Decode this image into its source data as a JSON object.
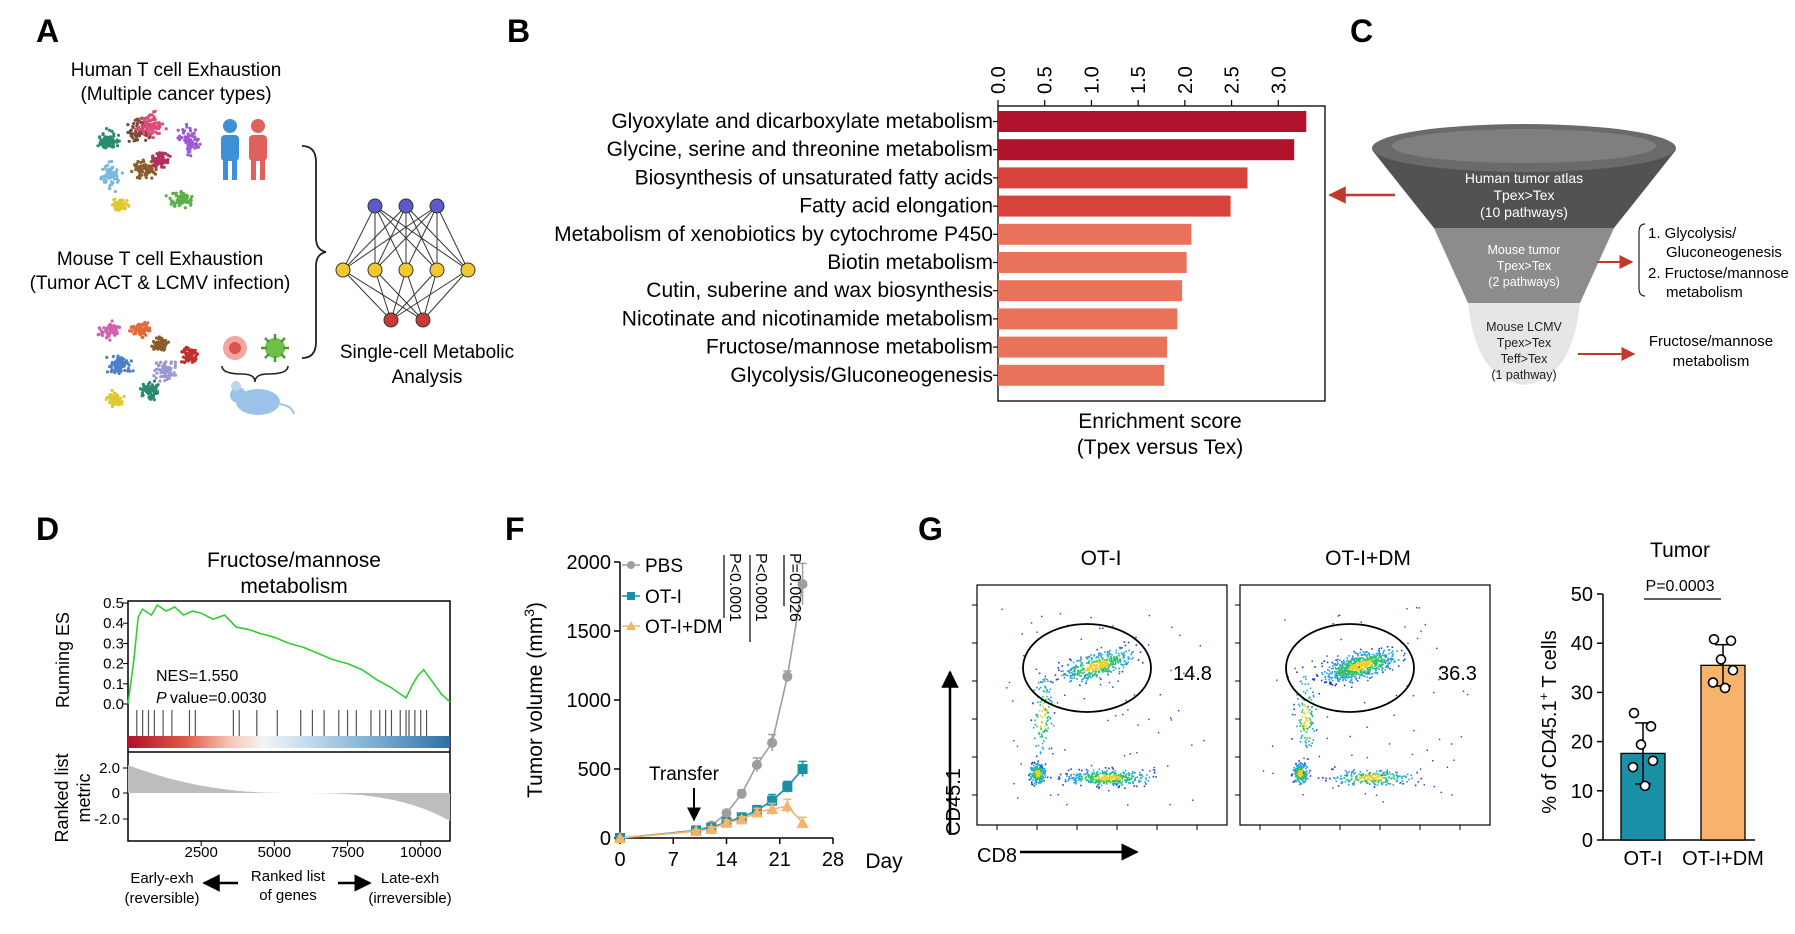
{
  "panels": {
    "A": {
      "letter": "A",
      "human_title": "Human T cell Exhaustion",
      "human_subtitle": "(Multiple cancer types)",
      "mouse_title": "Mouse T cell Exhaustion",
      "mouse_subtitle": "(Tumor ACT & LCMV infection)",
      "analysis_label_1": "Single-cell Metabolic",
      "analysis_label_2": "Analysis"
    },
    "B": {
      "letter": "B"
    },
    "C": {
      "letter": "C",
      "funnel_top_1": "Human tumor atlas",
      "funnel_top_2": "Tpex>Tex",
      "funnel_top_3": "(10 pathways)",
      "funnel_mid_1": "Mouse tumor",
      "funnel_mid_2": "Tpex>Tex",
      "funnel_mid_3": "(2 pathways)",
      "funnel_low_1": "Mouse LCMV",
      "funnel_low_2": "Tpex>Tex",
      "funnel_low_3": "Teff>Tex",
      "funnel_low_4": "(1 pathway)",
      "list_item_1a": "1.  Glycolysis/",
      "list_item_1b": "Gluconeogenesis",
      "list_item_2a": "2.  Fructose/mannose",
      "list_item_2b": "metabolism",
      "result_1": "Fructose/mannose",
      "result_2": "metabolism"
    },
    "D": {
      "letter": "D"
    },
    "F": {
      "letter": "F"
    },
    "G": {
      "letter": "G"
    }
  },
  "colors": {
    "bar_dark": "#b0112b",
    "bar_mid": "#d6433b",
    "bar_light": "#e9735a",
    "gsea_line": "#33cc33",
    "ot1": "#1a8fa6",
    "ot1dm": "#f7b36b",
    "pbs": "#9e9e9e",
    "arrow_red": "#c0392b"
  },
  "chart_data": [
    {
      "id": "B",
      "type": "bar",
      "orientation": "horizontal",
      "categories": [
        "Glyoxylate and dicarboxylate metabolism",
        "Glycine, serine and threonine metabolism",
        "Biosynthesis of unsaturated fatty acids",
        "Fatty acid elongation",
        "Metabolism of xenobiotics by cytochrome P450",
        "Biotin metabolism",
        "Cutin, suberine and wax biosynthesis",
        "Nicotinate and nicotinamide metabolism",
        "Fructose/mannose metabolism",
        "Glycolysis/Gluconeogenesis"
      ],
      "values": [
        3.3,
        3.17,
        2.67,
        2.49,
        2.07,
        2.02,
        1.97,
        1.92,
        1.81,
        1.78
      ],
      "xlim": [
        0,
        3.5
      ],
      "xticks": [
        0,
        0.5,
        1.0,
        1.5,
        2.0,
        2.5,
        3.0
      ],
      "xtick_labels": [
        "0.0",
        "0.5",
        "1.0",
        "1.5",
        "2.0",
        "2.5",
        "3.0"
      ],
      "xlabel_1": "Enrichment score",
      "xlabel_2": "(Tpex versus Tex)"
    },
    {
      "id": "D",
      "type": "line",
      "title_1": "Fructose/mannose",
      "title_2": "metabolism",
      "ylabel_top": "Running ES",
      "ylabel_bottom_1": "Ranked list",
      "ylabel_bottom_2": "metric",
      "es_yticks": [
        "0.5",
        "0.4",
        "0.3",
        "0.2",
        "0.1",
        "0.0"
      ],
      "metric_yticks": [
        "2.0",
        "0",
        "-2.0"
      ],
      "xticks": [
        "2500",
        "5000",
        "7500",
        "10000"
      ],
      "x_max": 11000,
      "es_x": [
        0,
        200,
        350,
        500,
        800,
        1000,
        1300,
        1600,
        1900,
        2200,
        2500,
        2900,
        3300,
        3700,
        4100,
        4500,
        5000,
        5500,
        6000,
        6500,
        7000,
        7500,
        8000,
        8500,
        9000,
        9300,
        9500,
        9700,
        9900,
        10100,
        10300,
        10500,
        10700,
        11000
      ],
      "es_y": [
        0.0,
        0.22,
        0.43,
        0.47,
        0.44,
        0.49,
        0.46,
        0.48,
        0.44,
        0.46,
        0.45,
        0.42,
        0.44,
        0.38,
        0.37,
        0.35,
        0.33,
        0.3,
        0.28,
        0.25,
        0.22,
        0.2,
        0.17,
        0.12,
        0.08,
        0.05,
        0.03,
        0.09,
        0.14,
        0.17,
        0.13,
        0.09,
        0.05,
        0.01
      ],
      "hits": [
        300,
        500,
        700,
        900,
        1200,
        1500,
        2100,
        2300,
        3600,
        3800,
        4400,
        5100,
        5900,
        6300,
        6700,
        7200,
        7500,
        7800,
        8300,
        8600,
        8800,
        9000,
        9300,
        9500,
        9600,
        9800,
        10000,
        10200
      ],
      "nes": "NES=1.550",
      "p_label": "P",
      "p_value": "value=0.0030",
      "xlabel_left_1": "Early-exh",
      "xlabel_left_2": "(reversible)",
      "xlabel_mid_1": "Ranked list",
      "xlabel_mid_2": "of genes",
      "xlabel_right_1": "Late-exh",
      "xlabel_right_2": "(irreversible)"
    },
    {
      "id": "F",
      "type": "line",
      "ylabel": "Tumor volume (mm",
      "ylabel_sup": "3",
      "ylabel_close": ")",
      "xlabel": "Day",
      "xlim": [
        0,
        28
      ],
      "ylim": [
        0,
        2000
      ],
      "xticks": [
        0,
        7,
        14,
        21,
        28
      ],
      "yticks": [
        0,
        500,
        1000,
        1500,
        2000
      ],
      "transfer_label": "Transfer",
      "pvals": [
        "P<0.0001",
        "P<0.0001",
        "P=0.0026"
      ],
      "series": [
        {
          "name": "PBS",
          "x": [
            0,
            10,
            12,
            14,
            16,
            18,
            20,
            22,
            24
          ],
          "y": [
            0,
            50,
            90,
            180,
            320,
            530,
            690,
            1170,
            1840
          ],
          "err": [
            0,
            10,
            15,
            20,
            30,
            50,
            60,
            40,
            150
          ]
        },
        {
          "name": "OT-I",
          "x": [
            0,
            10,
            12,
            14,
            16,
            18,
            20,
            22,
            24
          ],
          "y": [
            0,
            55,
            75,
            115,
            150,
            200,
            270,
            370,
            500
          ],
          "err": [
            0,
            10,
            15,
            20,
            25,
            35,
            45,
            40,
            55
          ]
        },
        {
          "name": "OT-I+DM",
          "x": [
            0,
            10,
            12,
            14,
            16,
            18,
            20,
            22,
            24
          ],
          "y": [
            0,
            50,
            65,
            110,
            135,
            185,
            210,
            230,
            110
          ],
          "err": [
            0,
            10,
            15,
            20,
            20,
            30,
            40,
            50,
            40
          ]
        }
      ]
    },
    {
      "id": "G_flow",
      "type": "scatter",
      "plot1_title": "OT-I",
      "plot2_title": "OT-I+DM",
      "gate1_value": "14.8",
      "gate2_value": "36.3",
      "ylabel": "CD45.1",
      "xlabel": "CD8"
    },
    {
      "id": "G_bar",
      "type": "bar",
      "title": "Tumor",
      "categories": [
        "OT-I",
        "OT-I+DM"
      ],
      "values": [
        17.6,
        35.5
      ],
      "err": [
        6.2,
        4.2
      ],
      "points": [
        [
          25.8,
          23.1,
          19.4,
          16.1,
          14.8,
          11.0
        ],
        [
          40.8,
          40.5,
          36.7,
          34.5,
          32.0,
          30.9
        ]
      ],
      "ylim": [
        0,
        50
      ],
      "yticks": [
        0,
        10,
        20,
        30,
        40,
        50
      ],
      "pvalue": "P=0.0003",
      "ylabel_prefix": "% of CD45.1",
      "ylabel_sup": "+",
      "ylabel_suffix": " T cells"
    }
  ]
}
